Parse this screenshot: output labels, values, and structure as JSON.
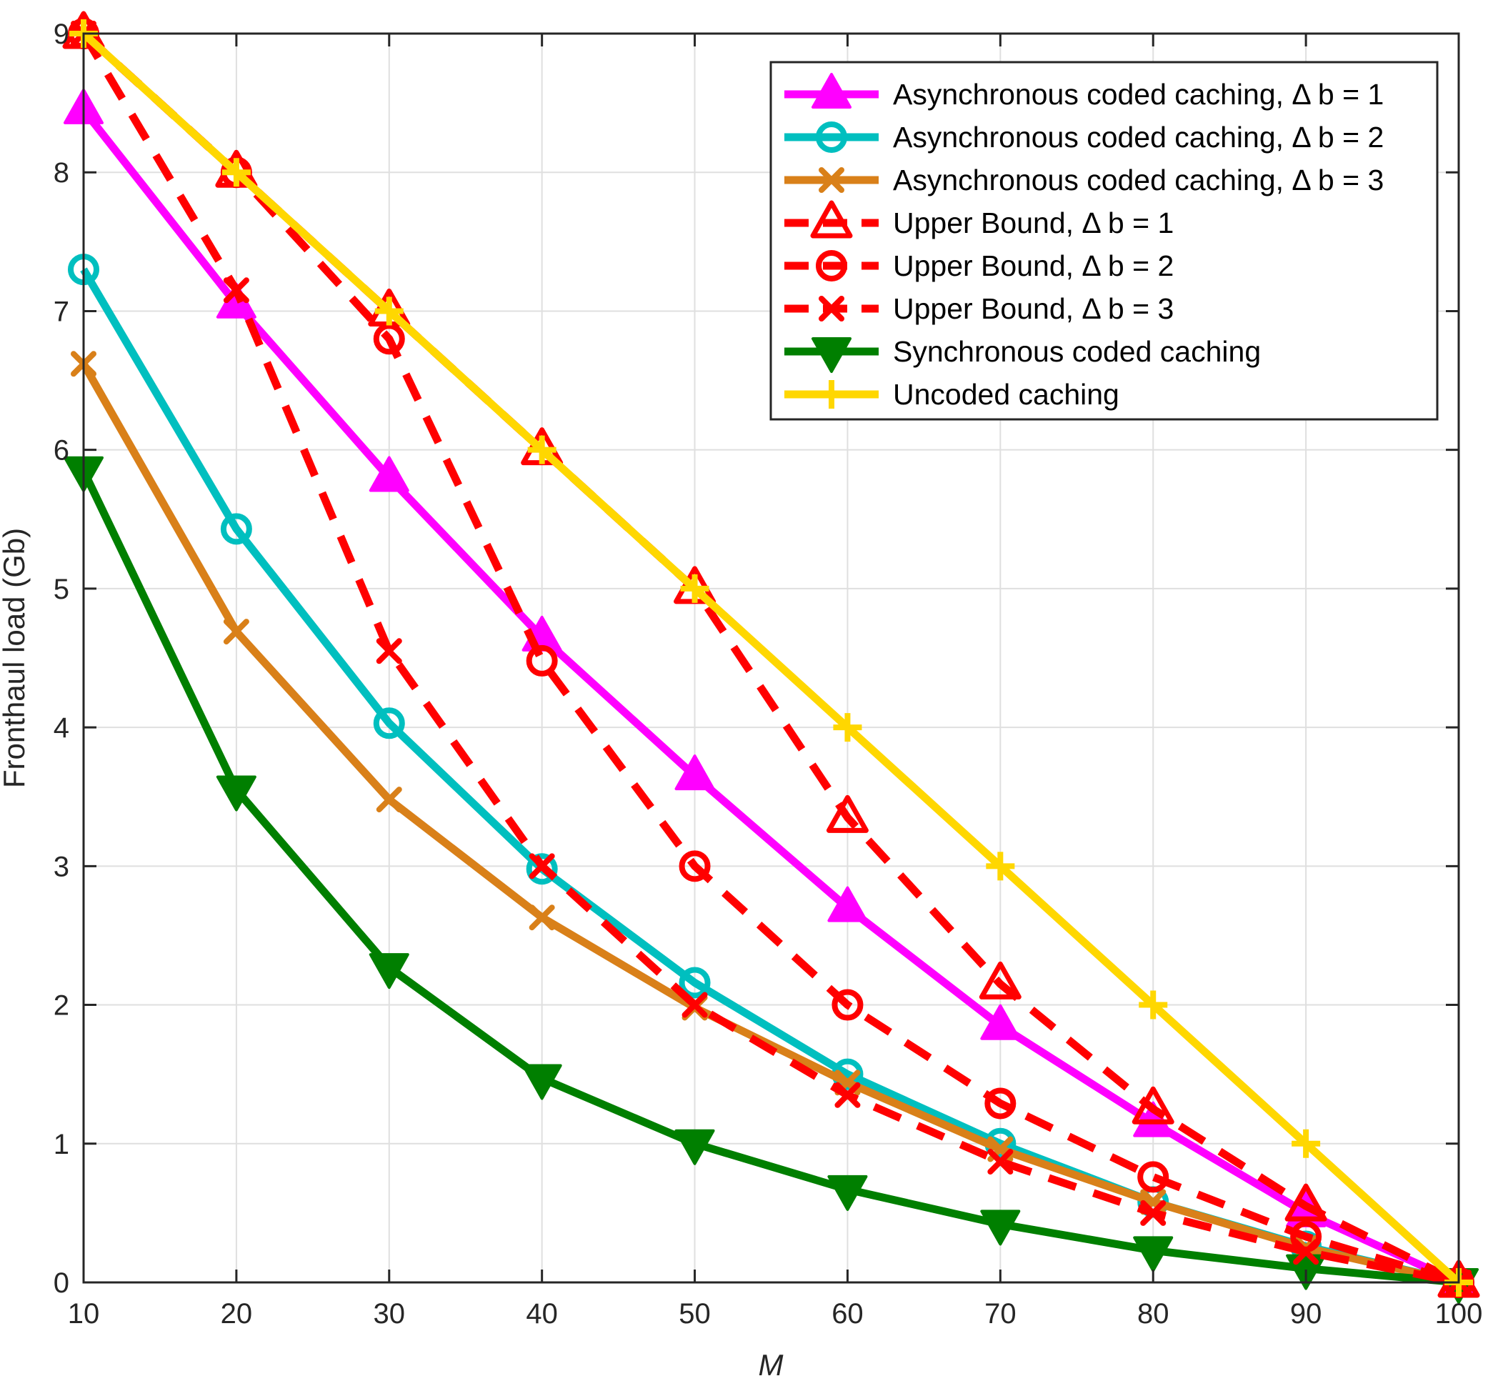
{
  "chart_data": {
    "type": "line",
    "title": "",
    "xlabel": "M",
    "ylabel": "Fronthaul load (Gb)",
    "xlim": [
      10,
      100
    ],
    "ylim": [
      0,
      9
    ],
    "xticks": [
      10,
      20,
      30,
      40,
      50,
      60,
      70,
      80,
      90,
      100
    ],
    "yticks": [
      0,
      1,
      2,
      3,
      4,
      5,
      6,
      7,
      8,
      9
    ],
    "grid": true,
    "legend_position": "top-right",
    "x": [
      10,
      20,
      30,
      40,
      50,
      60,
      70,
      80,
      90,
      100
    ],
    "series": [
      {
        "name": "Asynchronous coded caching, Δ b = 1",
        "values": [
          8.45,
          7.05,
          5.8,
          4.65,
          3.65,
          2.7,
          1.85,
          1.15,
          0.5,
          0
        ],
        "color": "#ff00ff",
        "dash": "solid",
        "marker": "triangle-filled"
      },
      {
        "name": "Asynchronous coded caching, Δ b = 2",
        "values": [
          7.3,
          5.43,
          4.03,
          2.98,
          2.16,
          1.5,
          1.0,
          0.58,
          0.26,
          0
        ],
        "color": "#00bfbf",
        "dash": "solid",
        "marker": "circle-open"
      },
      {
        "name": "Asynchronous coded caching, Δ b = 3",
        "values": [
          6.62,
          4.69,
          3.48,
          2.63,
          1.98,
          1.44,
          0.96,
          0.58,
          0.25,
          0
        ],
        "color": "#d98019",
        "dash": "solid",
        "marker": "x-cross"
      },
      {
        "name": "Upper Bound, Δ b = 1",
        "values": [
          9,
          8,
          7,
          6,
          5,
          3.35,
          2.15,
          1.25,
          0.55,
          0
        ],
        "color": "#ff0000",
        "dash": "dashed",
        "marker": "triangle-open"
      },
      {
        "name": "Upper Bound, Δ b = 2",
        "values": [
          9,
          8,
          6.8,
          4.48,
          3.0,
          2.0,
          1.29,
          0.76,
          0.33,
          0
        ],
        "color": "#ff0000",
        "dash": "dashed",
        "marker": "circle-open"
      },
      {
        "name": "Upper Bound, Δ b = 3",
        "values": [
          9,
          7.15,
          4.55,
          3.0,
          2.0,
          1.35,
          0.87,
          0.5,
          0.22,
          0
        ],
        "color": "#ff0000",
        "dash": "dashed",
        "marker": "x-cross"
      },
      {
        "name": "Synchronous coded caching",
        "values": [
          5.85,
          3.55,
          2.27,
          1.47,
          1.0,
          0.67,
          0.42,
          0.23,
          0.1,
          0
        ],
        "color": "#007f00",
        "dash": "solid",
        "marker": "triangle-down-filled"
      },
      {
        "name": "Uncoded caching",
        "values": [
          9,
          8,
          7,
          6,
          5,
          4,
          3,
          2,
          1,
          0
        ],
        "color": "#ffd700",
        "dash": "solid",
        "marker": "plus"
      }
    ]
  }
}
